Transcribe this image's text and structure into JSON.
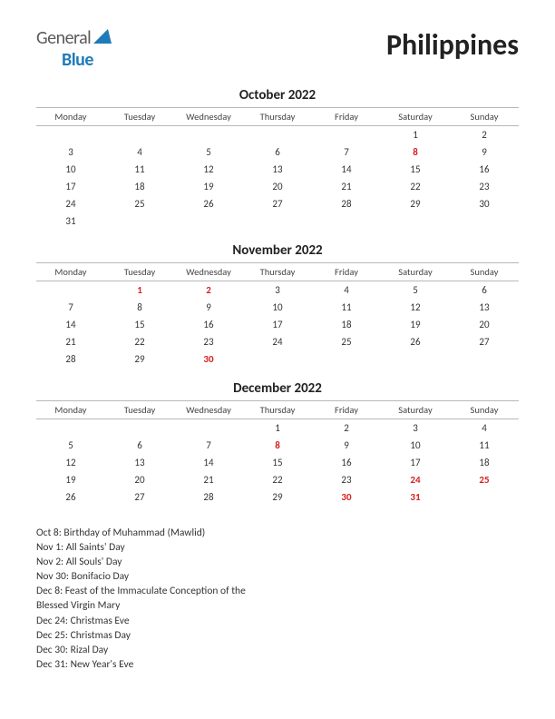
{
  "logo": {
    "general": "General",
    "blue": "Blue",
    "triangle_color": "#1e7bb8"
  },
  "country": "Philippines",
  "weekdays": [
    "Monday",
    "Tuesday",
    "Wednesday",
    "Thursday",
    "Friday",
    "Saturday",
    "Sunday"
  ],
  "holiday_color": "#d62020",
  "text_color": "#333333",
  "border_color": "#b8b8b8",
  "months": [
    {
      "title": "October 2022",
      "weeks": [
        [
          "",
          "",
          "",
          "",
          "",
          "1",
          "2"
        ],
        [
          "3",
          "4",
          "5",
          "6",
          "7",
          "8",
          "9"
        ],
        [
          "10",
          "11",
          "12",
          "13",
          "14",
          "15",
          "16"
        ],
        [
          "17",
          "18",
          "19",
          "20",
          "21",
          "22",
          "23"
        ],
        [
          "24",
          "25",
          "26",
          "27",
          "28",
          "29",
          "30"
        ],
        [
          "31",
          "",
          "",
          "",
          "",
          "",
          ""
        ]
      ],
      "holidays": [
        "8"
      ]
    },
    {
      "title": "November 2022",
      "weeks": [
        [
          "",
          "1",
          "2",
          "3",
          "4",
          "5",
          "6"
        ],
        [
          "7",
          "8",
          "9",
          "10",
          "11",
          "12",
          "13"
        ],
        [
          "14",
          "15",
          "16",
          "17",
          "18",
          "19",
          "20"
        ],
        [
          "21",
          "22",
          "23",
          "24",
          "25",
          "26",
          "27"
        ],
        [
          "28",
          "29",
          "30",
          "",
          "",
          "",
          ""
        ]
      ],
      "holidays": [
        "1",
        "2",
        "30"
      ]
    },
    {
      "title": "December 2022",
      "weeks": [
        [
          "",
          "",
          "",
          "1",
          "2",
          "3",
          "4"
        ],
        [
          "5",
          "6",
          "7",
          "8",
          "9",
          "10",
          "11"
        ],
        [
          "12",
          "13",
          "14",
          "15",
          "16",
          "17",
          "18"
        ],
        [
          "19",
          "20",
          "21",
          "22",
          "23",
          "24",
          "25"
        ],
        [
          "26",
          "27",
          "28",
          "29",
          "30",
          "31",
          ""
        ]
      ],
      "holidays": [
        "8",
        "24",
        "25",
        "30",
        "31"
      ]
    }
  ],
  "holiday_lines": [
    "Oct 8: Birthday of Muhammad (Mawlid)",
    "Nov 1: All Saints' Day",
    "Nov 2: All Souls' Day",
    "Nov 30: Bonifacio Day",
    "Dec 8: Feast of the Immaculate Conception of the",
    "Blessed Virgin Mary",
    "Dec 24: Christmas Eve",
    "Dec 25: Christmas Day",
    "Dec 30: Rizal Day",
    "Dec 31: New Year's Eve"
  ]
}
